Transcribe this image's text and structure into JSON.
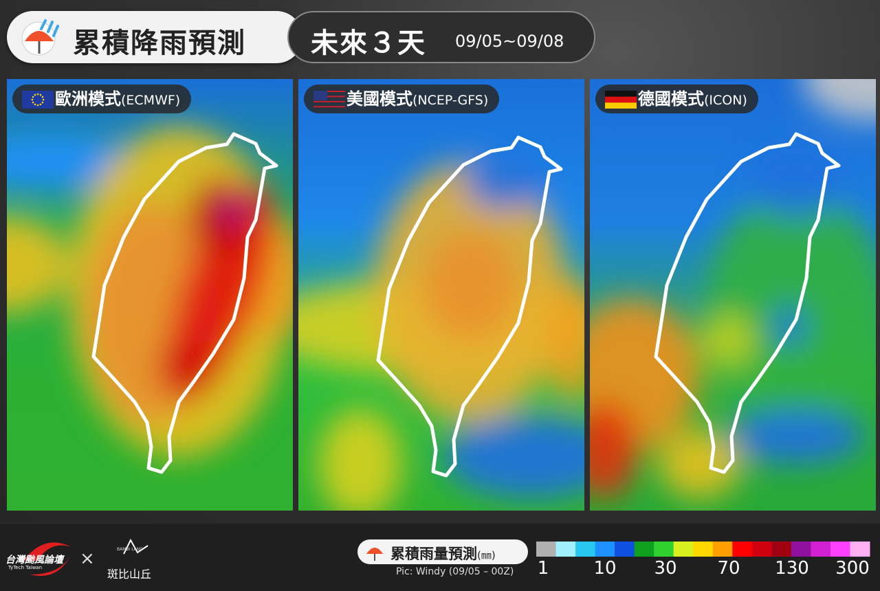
{
  "header": {
    "title": "累積降雨預測",
    "period": "未來３天",
    "dates": "09/05~09/08"
  },
  "panels": [
    {
      "name": "歐洲模式",
      "model": "(ECMWF)"
    },
    {
      "name": "美國模式",
      "model": "(NCEP-GFS)"
    },
    {
      "name": "德國模式",
      "model": "(ICON)"
    }
  ],
  "footer": {
    "brand": "台灣颱風論壇",
    "brand_en": "TyTech Taiwan",
    "cross": "×",
    "partner_en": "BAMBI LAND",
    "partner": "斑比山丘"
  },
  "legend": {
    "title": "累積雨量預測",
    "unit": "(㎜)",
    "source": "Pic: Windy (09/05 – 00Z)",
    "colors": [
      "#b0b0b0",
      "#a0f0ff",
      "#28c8f0",
      "#1e90ff",
      "#1050e0",
      "#10a020",
      "#30d030",
      "#d8f020",
      "#ffd800",
      "#ffa000",
      "#ff0000",
      "#d00010",
      "#a00010",
      "#9010a0",
      "#d020d0",
      "#ff40ff",
      "#ffb0f0"
    ],
    "ticks": [
      1,
      10,
      30,
      70,
      130,
      300
    ]
  }
}
